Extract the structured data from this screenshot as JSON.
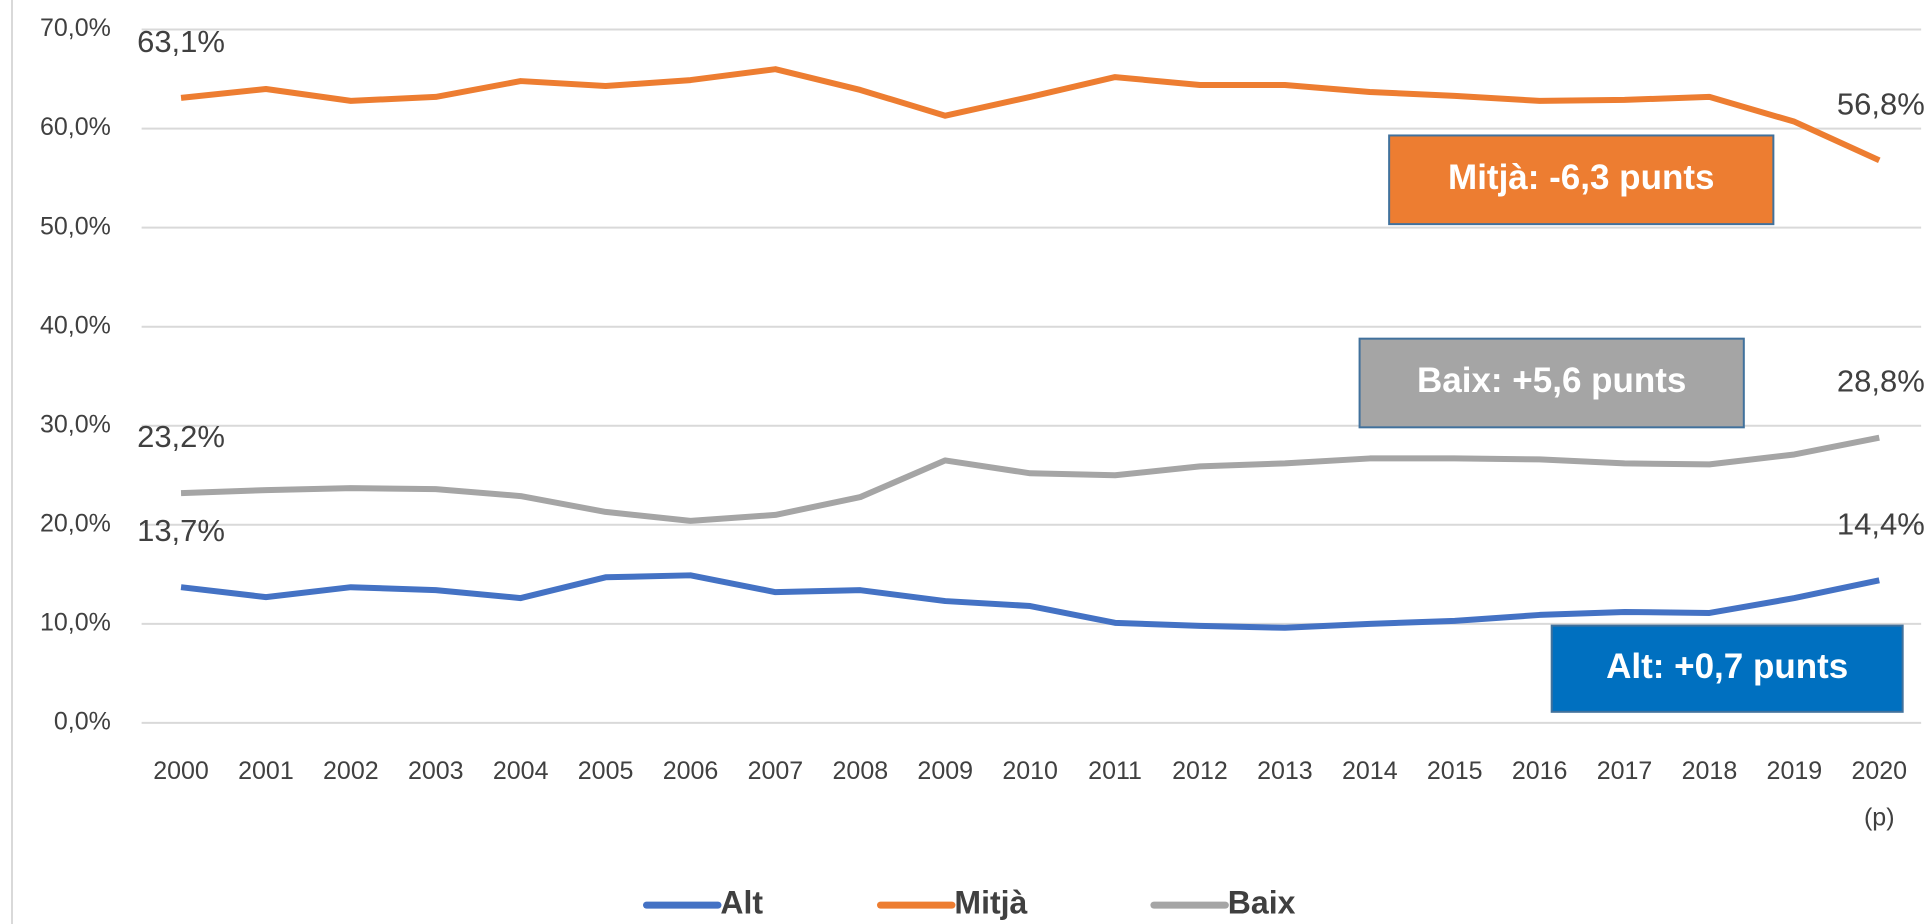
{
  "chart_data": {
    "type": "line",
    "categories": [
      "2000",
      "2001",
      "2002",
      "2003",
      "2004",
      "2005",
      "2006",
      "2007",
      "2008",
      "2009",
      "2010",
      "2011",
      "2012",
      "2013",
      "2014",
      "2015",
      "2016",
      "2017",
      "2018",
      "2019",
      "2020"
    ],
    "x_note": "(p)",
    "series": [
      {
        "name": "Alt",
        "color": "#4472c4",
        "values": [
          13.7,
          12.7,
          13.7,
          13.4,
          12.6,
          14.7,
          14.9,
          13.2,
          13.4,
          12.3,
          11.8,
          10.1,
          9.8,
          9.6,
          10.0,
          10.3,
          10.9,
          11.2,
          11.1,
          12.6,
          14.4
        ],
        "value_labels": [
          "13,7%",
          null,
          null,
          null,
          null,
          null,
          null,
          null,
          null,
          null,
          null,
          null,
          null,
          null,
          null,
          null,
          null,
          null,
          null,
          null,
          "14,4%"
        ]
      },
      {
        "name": "Mitjà",
        "color": "#ed7d31",
        "values": [
          63.1,
          64.0,
          62.8,
          63.2,
          64.8,
          64.3,
          64.9,
          66.0,
          63.9,
          61.3,
          63.2,
          65.2,
          64.4,
          64.4,
          63.7,
          63.3,
          62.8,
          62.9,
          63.2,
          60.7,
          56.8
        ],
        "value_labels": [
          "63,1%",
          null,
          null,
          null,
          null,
          null,
          null,
          null,
          null,
          null,
          null,
          null,
          null,
          null,
          null,
          null,
          null,
          null,
          null,
          null,
          "56,8%"
        ]
      },
      {
        "name": "Baix",
        "color": "#a5a5a5",
        "values": [
          23.2,
          23.5,
          23.7,
          23.6,
          22.9,
          21.3,
          20.4,
          21.0,
          22.8,
          26.5,
          25.2,
          25.0,
          25.9,
          26.2,
          26.7,
          26.7,
          26.6,
          26.2,
          26.1,
          27.1,
          28.8
        ],
        "value_labels": [
          "23,2%",
          null,
          null,
          null,
          null,
          null,
          null,
          null,
          null,
          null,
          null,
          null,
          null,
          null,
          null,
          null,
          null,
          null,
          null,
          null,
          "28,8%"
        ]
      }
    ],
    "annotations": [
      {
        "text": "Mitjà: -6,3 punts",
        "color": "#ed7d31"
      },
      {
        "text": "Baix: +5,6 punts",
        "color": "#a5a5a5"
      },
      {
        "text": "Alt: +0,7 punts",
        "color": "#0070c0"
      }
    ],
    "ylim": [
      0,
      70
    ],
    "yticks": [
      {
        "value": 0,
        "label": "0,0%"
      },
      {
        "value": 10,
        "label": "10,0%"
      },
      {
        "value": 20,
        "label": "20,0%"
      },
      {
        "value": 30,
        "label": "30,0%"
      },
      {
        "value": 40,
        "label": "40,0%"
      },
      {
        "value": 50,
        "label": "50,0%"
      },
      {
        "value": 60,
        "label": "60,0%"
      },
      {
        "value": 70,
        "label": "70,0%"
      }
    ],
    "grid": true,
    "legend": "bottom"
  }
}
